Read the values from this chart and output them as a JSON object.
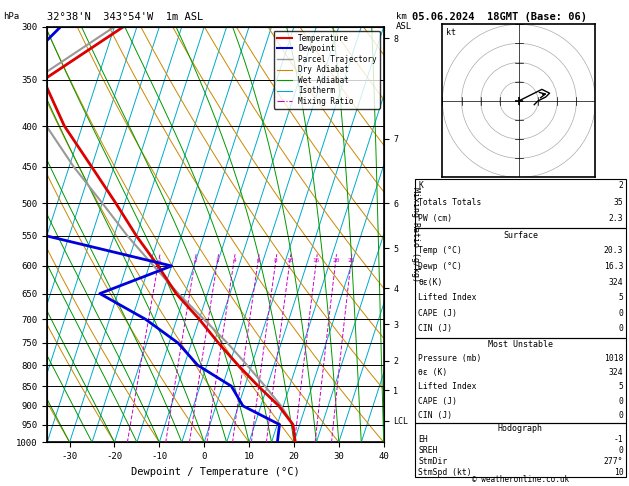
{
  "title_coord": "32°38'N  343°54'W  1m ASL",
  "date_title": "05.06.2024  18GMT (Base: 06)",
  "copyright": "© weatheronline.co.uk",
  "pmin": 300,
  "pmax": 1000,
  "tmin": -35,
  "tmax": 40,
  "pressure_levels": [
    300,
    350,
    400,
    450,
    500,
    550,
    600,
    650,
    700,
    750,
    800,
    850,
    900,
    950,
    1000
  ],
  "mixing_ratio_values": [
    1,
    2,
    3,
    4,
    6,
    8,
    10,
    15,
    20,
    25
  ],
  "temp_profile": {
    "pressure": [
      1000,
      950,
      900,
      850,
      800,
      750,
      700,
      650,
      600,
      550,
      500,
      450,
      400,
      350,
      300
    ],
    "temp": [
      20.3,
      18.5,
      14.0,
      8.0,
      2.0,
      -4.0,
      -10.0,
      -17.0,
      -23.0,
      -30.0,
      -37.0,
      -45.0,
      -54.0,
      -62.0,
      -48.0
    ]
  },
  "dewp_profile": {
    "pressure": [
      1000,
      950,
      900,
      850,
      800,
      750,
      700,
      650,
      600,
      550,
      500,
      450,
      400,
      350,
      300
    ],
    "temp": [
      16.3,
      15.5,
      6.0,
      2.0,
      -7.0,
      -13.0,
      -22.0,
      -34.0,
      -20.0,
      -50.0,
      -55.0,
      -60.0,
      -65.0,
      -70.0,
      -62.0
    ]
  },
  "parcel_profile": {
    "pressure": [
      1000,
      950,
      900,
      850,
      800,
      750,
      700,
      650,
      600,
      550,
      500,
      450,
      400,
      350,
      300
    ],
    "temp": [
      20.3,
      18.5,
      14.5,
      9.5,
      4.0,
      -2.0,
      -9.0,
      -16.5,
      -24.0,
      -32.0,
      -40.0,
      -49.0,
      -58.0,
      -64.0,
      -50.0
    ]
  },
  "skew_factor": 30.0,
  "isotherm_color": "#00aacc",
  "dry_adiabat_color": "#cc8800",
  "wet_adiabat_color": "#009900",
  "mixing_ratio_color": "#cc00cc",
  "temp_color": "#dd0000",
  "dewp_color": "#0000dd",
  "parcel_color": "#999999",
  "legend_items": [
    {
      "label": "Temperature",
      "color": "#dd0000",
      "ls": "-",
      "lw": 1.5
    },
    {
      "label": "Dewpoint",
      "color": "#0000dd",
      "ls": "-",
      "lw": 1.5
    },
    {
      "label": "Parcel Trajectory",
      "color": "#999999",
      "ls": "-",
      "lw": 1.0
    },
    {
      "label": "Dry Adiabat",
      "color": "#cc8800",
      "ls": "-",
      "lw": 0.8
    },
    {
      "label": "Wet Adiabat",
      "color": "#009900",
      "ls": "-",
      "lw": 0.8
    },
    {
      "label": "Isotherm",
      "color": "#00aacc",
      "ls": "-",
      "lw": 0.8
    },
    {
      "label": "Mixing Ratio",
      "color": "#cc00cc",
      "ls": "-.",
      "lw": 0.8
    }
  ],
  "sounding_data": {
    "K": 2,
    "TT": 35,
    "PW": 2.3,
    "surface_temp": 20.3,
    "surface_dewp": 16.3,
    "surface_theta_e": 324,
    "surface_lifted_index": 5,
    "surface_cape": 0,
    "surface_cin": 0,
    "mu_pressure": 1018,
    "mu_theta_e": 324,
    "mu_lifted_index": 5,
    "mu_cape": 0,
    "mu_cin": 0,
    "hodo_eh": -1,
    "hodo_sreh": 0,
    "hodo_stmdir": 277,
    "hodo_stmspd": 10
  },
  "hodo_winds_u": [
    0,
    2,
    4,
    6,
    8,
    7,
    5,
    4
  ],
  "hodo_winds_v": [
    0,
    1,
    2,
    3,
    2,
    1,
    0,
    -1
  ],
  "right_panel_km_ticks": [
    [
      310,
      "8"
    ],
    [
      370,
      ""
    ],
    [
      415,
      "7"
    ],
    [
      490,
      ""
    ],
    [
      500,
      "6"
    ],
    [
      570,
      "5"
    ],
    [
      640,
      "4"
    ],
    [
      710,
      "3"
    ],
    [
      790,
      "2"
    ],
    [
      860,
      "1"
    ],
    [
      940,
      "LCL"
    ]
  ],
  "right_axis_km_labels": [
    [
      310,
      "8"
    ],
    [
      415,
      "7"
    ],
    [
      500,
      "6"
    ],
    [
      570,
      "5"
    ],
    [
      640,
      "4"
    ],
    [
      710,
      "3"
    ],
    [
      790,
      "2"
    ],
    [
      860,
      "1"
    ],
    [
      940,
      "LCL"
    ]
  ]
}
